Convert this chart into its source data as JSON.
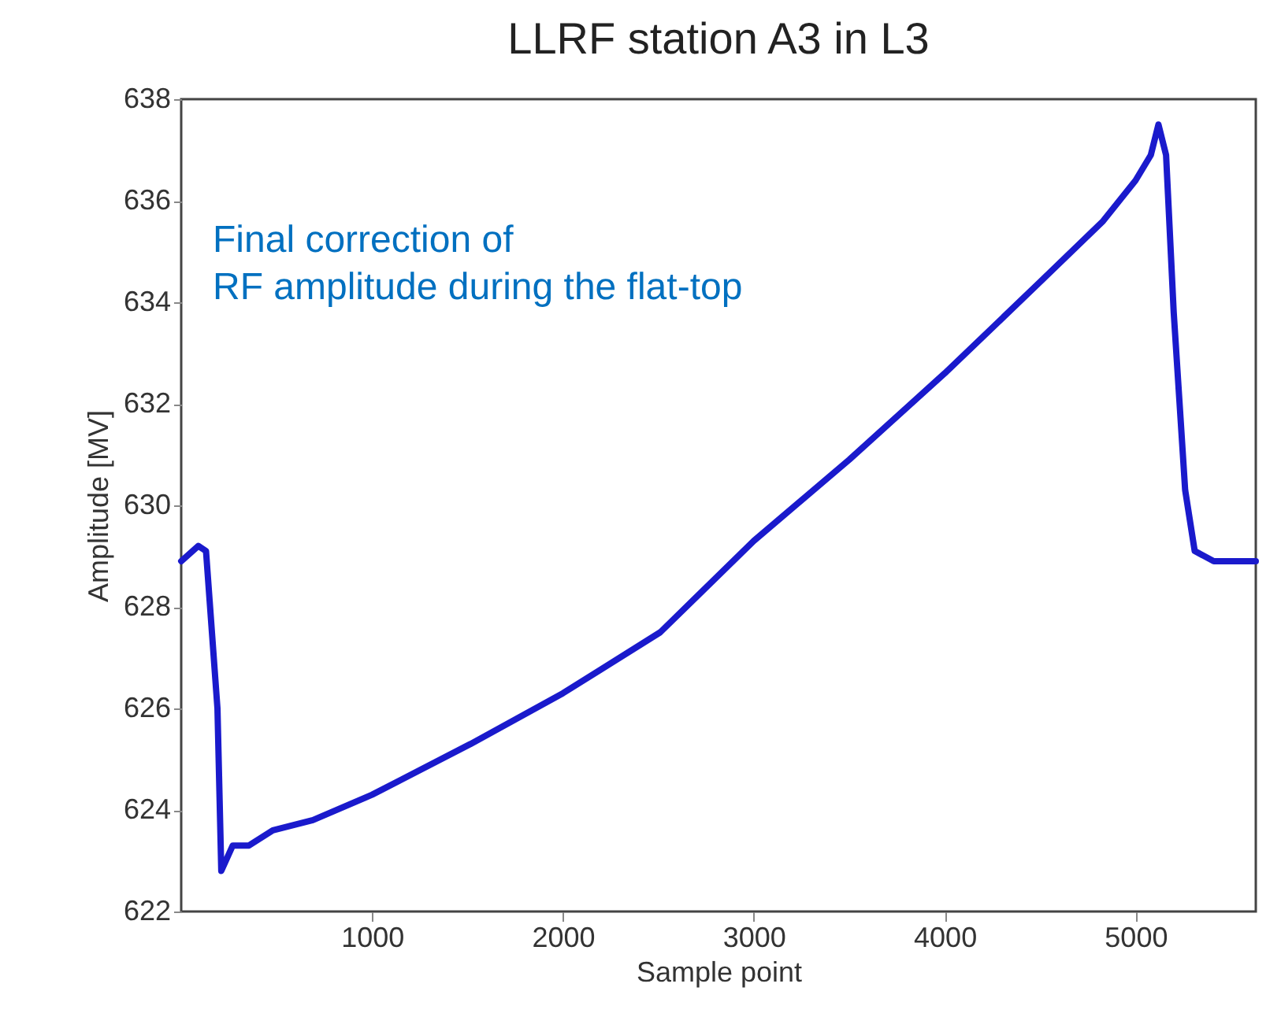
{
  "chart_data": {
    "type": "line",
    "title": "LLRF station A3 in L3",
    "xlabel": "Sample point",
    "ylabel": "Amplitude [MV]",
    "annotations": [
      "Final correction of\nRF amplitude during the flat-top"
    ],
    "xlim": [
      0,
      5630
    ],
    "ylim": [
      622,
      638
    ],
    "xticks": [
      1000,
      2000,
      3000,
      4000,
      5000
    ],
    "yticks": [
      622,
      624,
      626,
      628,
      630,
      632,
      634,
      636,
      638
    ],
    "marker": "none",
    "line_style": "solid",
    "grid": false,
    "series": [
      {
        "color": "#1a1acc",
        "x": [
          0,
          90,
          130,
          190,
          210,
          270,
          355,
          480,
          690,
          1000,
          1516,
          2000,
          2510,
          3000,
          3500,
          4000,
          4500,
          4830,
          5000,
          5080,
          5120,
          5160,
          5200,
          5260,
          5310,
          5410,
          5630
        ],
        "values": [
          628.9,
          629.2,
          629.1,
          626.0,
          622.8,
          623.3,
          623.3,
          623.6,
          623.8,
          624.3,
          625.3,
          626.3,
          627.5,
          629.3,
          630.9,
          632.6,
          634.4,
          635.6,
          636.4,
          636.9,
          637.5,
          636.9,
          633.8,
          630.3,
          629.1,
          628.9,
          628.9
        ]
      }
    ]
  }
}
